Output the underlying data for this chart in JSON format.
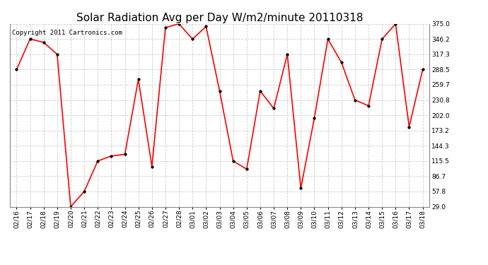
{
  "title": "Solar Radiation Avg per Day W/m2/minute 20110318",
  "copyright_text": "Copyright 2011 Cartronics.com",
  "dates": [
    "02/16",
    "02/17",
    "02/18",
    "02/19",
    "02/20",
    "02/21",
    "02/22",
    "02/23",
    "02/24",
    "02/25",
    "02/26",
    "02/27",
    "02/28",
    "03/01",
    "03/02",
    "03/03",
    "03/04",
    "03/05",
    "03/06",
    "03/07",
    "03/08",
    "03/09",
    "03/10",
    "03/11",
    "03/12",
    "03/13",
    "03/14",
    "03/15",
    "03/16",
    "03/17",
    "03/18"
  ],
  "values": [
    288.5,
    346.2,
    340.0,
    317.3,
    29.0,
    57.8,
    115.5,
    125.0,
    128.0,
    270.0,
    105.0,
    368.0,
    375.0,
    346.2,
    370.0,
    248.0,
    115.5,
    100.0,
    248.0,
    215.0,
    317.3,
    64.0,
    197.0,
    346.2,
    302.0,
    230.8,
    220.0,
    346.2,
    375.0,
    180.0,
    288.5
  ],
  "line_color": "#ff0000",
  "marker_color": "#000000",
  "bg_color": "#ffffff",
  "grid_color": "#c8c8c8",
  "grid_linestyle": "--",
  "yticks": [
    29.0,
    57.8,
    86.7,
    115.5,
    144.3,
    173.2,
    202.0,
    230.8,
    259.7,
    288.5,
    317.3,
    346.2,
    375.0
  ],
  "ylim": [
    29.0,
    375.0
  ],
  "title_fontsize": 11,
  "copyright_fontsize": 6.5,
  "tick_fontsize": 6.5,
  "ylabel_fontsize": 7,
  "figwidth": 6.9,
  "figheight": 3.75,
  "dpi": 100
}
